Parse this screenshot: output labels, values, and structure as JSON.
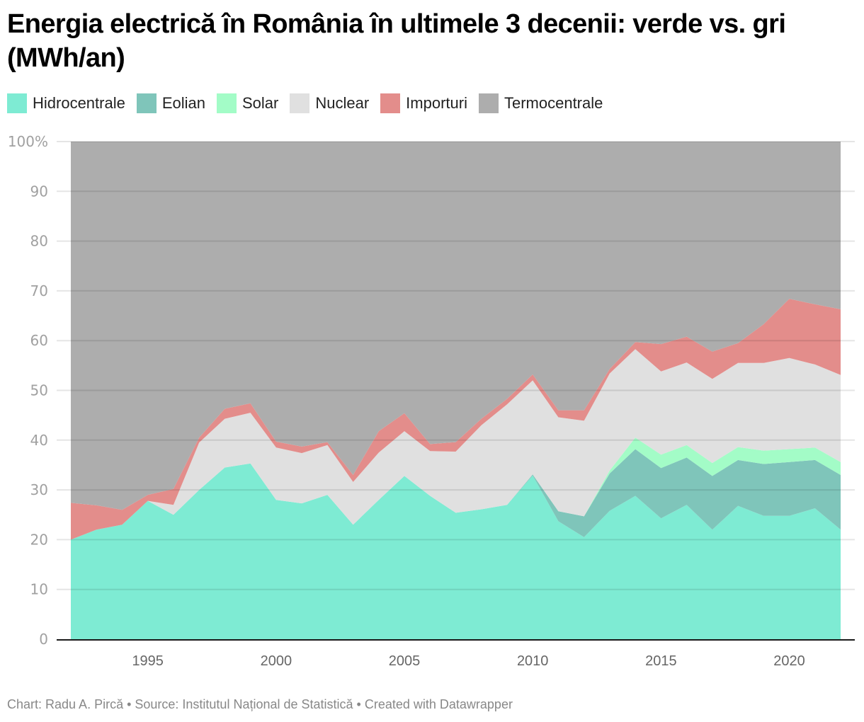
{
  "title": "Energia electrică în România în ultimele 3 decenii: verde vs. gri (MWh/an)",
  "footer": "Chart: Radu A. Pircă • Source: Institutul Național de Statistică • Created with Datawrapper",
  "chart_data": {
    "type": "area",
    "stacked": true,
    "title": "Energia electrică în România în ultimele 3 decenii: verde vs. gri (MWh/an)",
    "xlabel": "",
    "ylabel": "",
    "ylim": [
      0,
      100
    ],
    "y_unit": "%",
    "y_ticks": [
      "0",
      "10",
      "20",
      "30",
      "40",
      "50",
      "60",
      "70",
      "80",
      "90",
      "100%"
    ],
    "x_ticks": [
      "1995",
      "2000",
      "2005",
      "2010",
      "2015",
      "2020"
    ],
    "x": [
      1992,
      1993,
      1994,
      1995,
      1996,
      1997,
      1998,
      1999,
      2000,
      2001,
      2002,
      2003,
      2004,
      2005,
      2006,
      2007,
      2008,
      2009,
      2010,
      2011,
      2012,
      2013,
      2014,
      2015,
      2016,
      2017,
      2018,
      2019,
      2020,
      2021,
      2022
    ],
    "grid": true,
    "legend_position": "top-left",
    "series": [
      {
        "name": "Hidrocentrale",
        "color": "#7EEBD3",
        "values": [
          20,
          22,
          23,
          27.8,
          25,
          30,
          34.5,
          35.3,
          28,
          27.3,
          29,
          23,
          28,
          32.8,
          28.8,
          25.4,
          26.1,
          27,
          32.9,
          23.7,
          20.5,
          25.8,
          28.8,
          24.3,
          27,
          22,
          26.8,
          24.8,
          24.8,
          26.3,
          22
        ]
      },
      {
        "name": "Eolian",
        "color": "#7FC5BA",
        "values": [
          0,
          0,
          0,
          0,
          0,
          0,
          0,
          0,
          0,
          0,
          0,
          0,
          0,
          0,
          0,
          0,
          0,
          0,
          0.2,
          2,
          4.2,
          7.5,
          9.4,
          10.1,
          9.5,
          10.8,
          9.2,
          10.4,
          10.8,
          9.7,
          11
        ]
      },
      {
        "name": "Solar",
        "color": "#A3FCC7",
        "values": [
          0,
          0,
          0,
          0,
          0,
          0,
          0,
          0,
          0,
          0,
          0,
          0,
          0,
          0,
          0,
          0,
          0,
          0,
          0,
          0,
          0,
          0.6,
          2.3,
          2.7,
          2.5,
          2.6,
          2.6,
          2.7,
          2.6,
          2.5,
          2.6
        ]
      },
      {
        "name": "Nuclear",
        "color": "#E0E0E0",
        "values": [
          0,
          0,
          0,
          0,
          2,
          9.5,
          9.8,
          10.2,
          10.5,
          10.1,
          10,
          8.6,
          9.5,
          9,
          9,
          12.3,
          16.9,
          20.2,
          18.9,
          18.9,
          19.2,
          19.5,
          17.8,
          16.7,
          16.6,
          16.9,
          16.9,
          17.6,
          18.3,
          16.7,
          17.5
        ]
      },
      {
        "name": "Importuri",
        "color": "#E38D8B",
        "values": [
          7.4,
          4.9,
          3,
          1.2,
          3.2,
          1,
          2,
          1.9,
          1.2,
          1.3,
          0.6,
          1.4,
          4.3,
          3.6,
          1.4,
          1.9,
          1.3,
          1.1,
          1.2,
          1.4,
          2.1,
          0.9,
          1.4,
          5.5,
          5.2,
          5.5,
          4,
          7.8,
          11.9,
          12.1,
          13.2
        ]
      },
      {
        "name": "Termocentrale",
        "color": "#ADADAD",
        "values": [
          72.6,
          73.1,
          74,
          71,
          69.8,
          59.5,
          53.7,
          52.6,
          60.3,
          61.3,
          60.4,
          67,
          58.2,
          54.6,
          60.8,
          60.4,
          55.7,
          51.7,
          46.8,
          54,
          54,
          45.7,
          40.3,
          40.7,
          39.2,
          42.2,
          40.5,
          36.7,
          31.6,
          32.7,
          33.7
        ]
      }
    ]
  }
}
